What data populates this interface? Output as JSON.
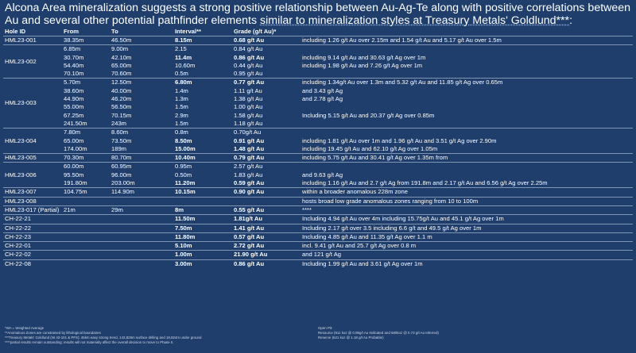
{
  "title_pre": "Alcona Area mineralization suggests a strong positive relationship between Au-Ag-Te along with positive correlations between Au and several other potential pathfinder elements ",
  "title_underlined": "similar to mineralization styles at Treasury Metals' Goldlund***",
  "title_post": ":",
  "headers": [
    "Hole ID",
    "From",
    "To",
    "Interval**",
    "Grade (g/t Au)*",
    ""
  ],
  "rows": [
    {
      "hole": "HML23-001",
      "span": 1,
      "from": "38.35m",
      "to": "46.50m",
      "interval": "8.15m",
      "grade": "0.68 g/t Au",
      "note": "including 1.26 g/t Au over 2.15m and 1.54 g/t Au and 5.17 g/t Au over 1.5m",
      "bold": true
    },
    {
      "hole": "HML23-002",
      "span": 4,
      "from": "6.85m",
      "to": "9.00m",
      "interval": "2.15",
      "grade": "0.84 g/t Au",
      "note": "",
      "bold": false
    },
    {
      "hole": "",
      "span": 0,
      "from": "30.70m",
      "to": "42.10m",
      "interval": "11.4m",
      "grade": "0.86 g/t Au",
      "note": "including 9.14 g/t Au and 30.63 g/t Ag over 1m",
      "bold": true
    },
    {
      "hole": "",
      "span": 0,
      "from": "54.40m",
      "to": "65.00m",
      "interval": "10.60m",
      "grade": "0.44 g/t Au",
      "note": "including 1.98 g/t Au and 7.26 g/t Ag over 1m",
      "bold": false
    },
    {
      "hole": "",
      "span": 0,
      "from": "70.10m",
      "to": "70.60m",
      "interval": "0.5m",
      "grade": "0.95 g/t Au",
      "note": "",
      "bold": false
    },
    {
      "hole": "HML23-003",
      "span": 6,
      "from": "5.70m",
      "to": "12.50m",
      "interval": "6.80m",
      "grade": "0.77 g/t Au",
      "note": "including 1.34g/t Au over 1.3m and 5.32 g/t Au and 11.85 g/t Ag over 0.65m",
      "bold": true
    },
    {
      "hole": "",
      "span": 0,
      "from": "38.60m",
      "to": "40.00m",
      "interval": "1.4m",
      "grade": "1.11 g/t Au",
      "note": " and 3.43 g/t Ag",
      "bold": false
    },
    {
      "hole": "",
      "span": 0,
      "from": "44.90m",
      "to": "46.20m",
      "interval": "1.3m",
      "grade": "1.38 g/t Au",
      "note": " and 2.78 g/t Ag",
      "bold": false
    },
    {
      "hole": "",
      "span": 0,
      "from": "55.00m",
      "to": "56.50m",
      "interval": "1.5m",
      "grade": "1.00 g/t Au",
      "note": "",
      "bold": false
    },
    {
      "hole": "",
      "span": 0,
      "from": "67.25m",
      "to": "70.15m",
      "interval": "2.9m",
      "grade": "1.58 g/t Au",
      "note": "Including 5.15 g/t Au and 20.37 g/t Ag  over 0.85m",
      "bold": false
    },
    {
      "hole": "",
      "span": 0,
      "from": "241.50m",
      "to": "243m",
      "interval": "1.5m",
      "grade": "1.18 g/t Au",
      "note": "",
      "bold": false
    },
    {
      "hole": "HML23-004",
      "span": 3,
      "from": "7.80m",
      "to": "8.60m",
      "interval": "0.8m",
      "grade": "0.70g/t Au",
      "note": "",
      "bold": false
    },
    {
      "hole": "",
      "span": 0,
      "from": "65.00m",
      "to": "73.50m",
      "interval": "8.50m",
      "grade": "0.91 g/t Au",
      "note": "including 1.81 g/t Au over 1m and 1.96 g/t Au and 3.51 g/t Ag over 2.90m",
      "bold": true
    },
    {
      "hole": "",
      "span": 0,
      "from": "174.00m",
      "to": "189m",
      "interval": "15.00m",
      "grade": "1.48 g/t Au",
      "note": "including 19.45 g/t Au and 62.10 g/t Ag over 1.05m",
      "bold": true
    },
    {
      "hole": "HML23-005",
      "span": 1,
      "from": "70.30m",
      "to": "80.70m",
      "interval": "10.40m",
      "grade": "0.79 g/t Au",
      "note": "including 5.75 g/t Au and 30.41 g/t Ag over 1.35m from",
      "bold": true
    },
    {
      "hole": "HML23-006",
      "span": 3,
      "from": "60.00m",
      "to": "60.95m",
      "interval": "0.95m",
      "grade": "2.57 g/t Au",
      "note": "",
      "bold": false
    },
    {
      "hole": "",
      "span": 0,
      "from": "95.50m",
      "to": "96.00m",
      "interval": "0.50m",
      "grade": "1.83 g/t Au",
      "note": " and 9.63 g/t Ag",
      "bold": false
    },
    {
      "hole": "",
      "span": 0,
      "from": "191.80m",
      "to": "203.00m",
      "interval": "11.20m",
      "grade": "0.59 g/t Au",
      "note": "including 1.16 g/t Au and 2.7 g/t Ag from 191.8m and 2.17 g/t Au and 6.56 g/t Ag over 2.25m",
      "bold": true
    },
    {
      "hole": "HML23-007",
      "span": 1,
      "from": "104.75m",
      "to": "114.90m",
      "interval": "10.15m",
      "grade": "0.90 g/t Au",
      "note": "within a broader anomalous 228m zone",
      "bold": true
    },
    {
      "hole": "HML23-008",
      "span": 1,
      "from": "",
      "to": "",
      "interval": "",
      "grade": "",
      "note": "hosts broad low grade anomalous zones ranging from 10 to 100m",
      "bold": false
    },
    {
      "hole": "HML23-017 (Partial)",
      "span": 1,
      "from": "21m",
      "to": "29m",
      "interval": "8m",
      "grade": "0.55 g/t Au",
      "note": "****",
      "bold": true
    },
    {
      "hole": "CH-22-21",
      "span": 1,
      "from": "",
      "to": "",
      "interval": "11.50m",
      "grade": "1.81g/t Au",
      "note": "Including 4.94 g/t Au over 4m including 15.75g/t Au and 45.1 g/t Ag over 1m",
      "bold": true
    },
    {
      "hole": "CH-22-22",
      "span": 1,
      "from": "",
      "to": "",
      "interval": "7.50m",
      "grade": "1.41 g/t Au",
      "note": "Including 2.17 g/t over 3.5 including 6.6 g/t and 49.5 g/t Ag over 1m",
      "bold": true
    },
    {
      "hole": "CH-22-23",
      "span": 1,
      "from": "",
      "to": "",
      "interval": "11.80m",
      "grade": "0.57 g/t Au",
      "note": "Including 4.85 g/t Au and 11.35 g/t Ag over 1.1 m",
      "bold": true
    },
    {
      "hole": "CH-22-01",
      "span": 1,
      "from": "",
      "to": "",
      "interval": "5.10m",
      "grade": "2.72 g/t Au",
      "note": "incl. 9.41 g/t Au and 25.7 g/t Ag over 0.8 m",
      "bold": true
    },
    {
      "hole": "CH-22-02",
      "span": 1,
      "from": "",
      "to": "",
      "interval": "1.00m",
      "grade": "21.90 g/t Au",
      "note": "and 121 g/t Ag",
      "bold": true
    },
    {
      "hole": "CH-22-08",
      "span": 1,
      "from": "",
      "to": "",
      "interval": "3.00m",
      "grade": "0.86 g/t Au",
      "note": "Including 1.99 g/t Au and 3.61 g/t Ag over 1m",
      "bold": true
    }
  ],
  "footnotes_left": [
    "*WA = Weighted Average",
    "**Anomalous Zones are constrained by lithological boundaries",
    "***Treasury Metals' Goldlund (NI 43-101 & PFS): 45km easy strong trend, 143,825m surface drilling and 19,824m under ground",
    "****partial results remain outstanding; results will not materially affect the overall decision to move to Phase II."
  ],
  "footnotes_right": [
    "Open Pit:",
    "Resource (911 koz @ 0.89g/t Au Indicated and 680koz @ 0.73 g/t Au Inferred)",
    "Reserve (621 koz @ 1.18 g/t Au Probable)"
  ]
}
